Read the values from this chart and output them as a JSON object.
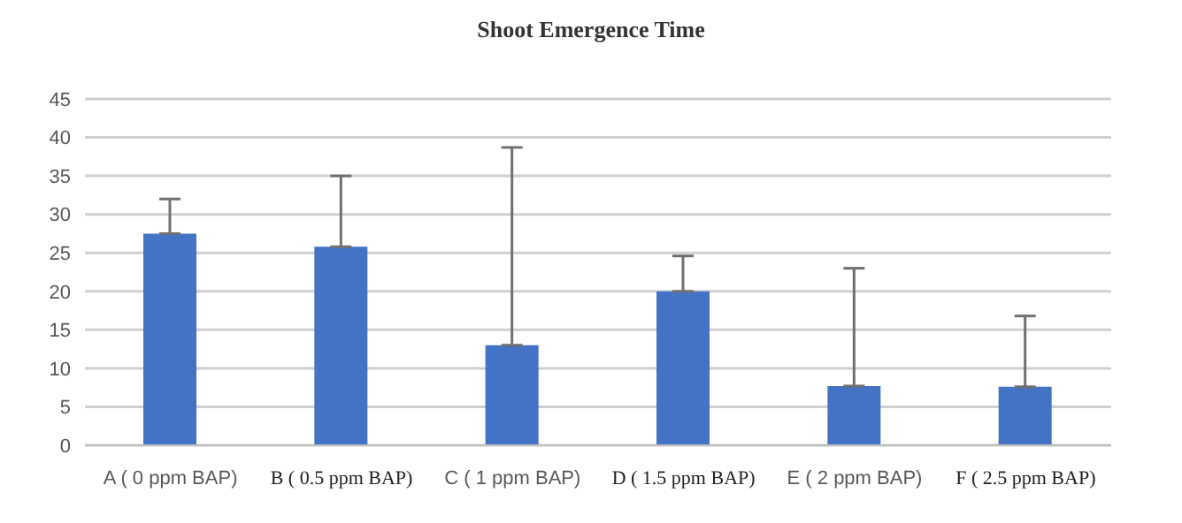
{
  "chart_data": {
    "type": "bar",
    "title": "Shoot Emergence Time",
    "categories": [
      "A ( 0 ppm BAP)",
      "B ( 0.5 ppm BAP)",
      "C ( 1 ppm BAP)",
      "D ( 1.5 ppm BAP)",
      "E ( 2 ppm BAP)",
      "F ( 2.5 ppm BAP)"
    ],
    "values": [
      27.5,
      25.8,
      13,
      20,
      7.7,
      7.6
    ],
    "errors": [
      [
        27.5,
        32
      ],
      [
        25.8,
        35
      ],
      [
        13,
        38.7
      ],
      [
        20,
        24.6
      ],
      [
        7.7,
        23
      ],
      [
        7.6,
        16.8
      ]
    ],
    "color": "#4472c4",
    "ylim": [
      0,
      45
    ],
    "yticks": [
      0,
      5,
      10,
      15,
      20,
      25,
      30,
      35,
      40,
      45
    ],
    "grid": "y"
  }
}
